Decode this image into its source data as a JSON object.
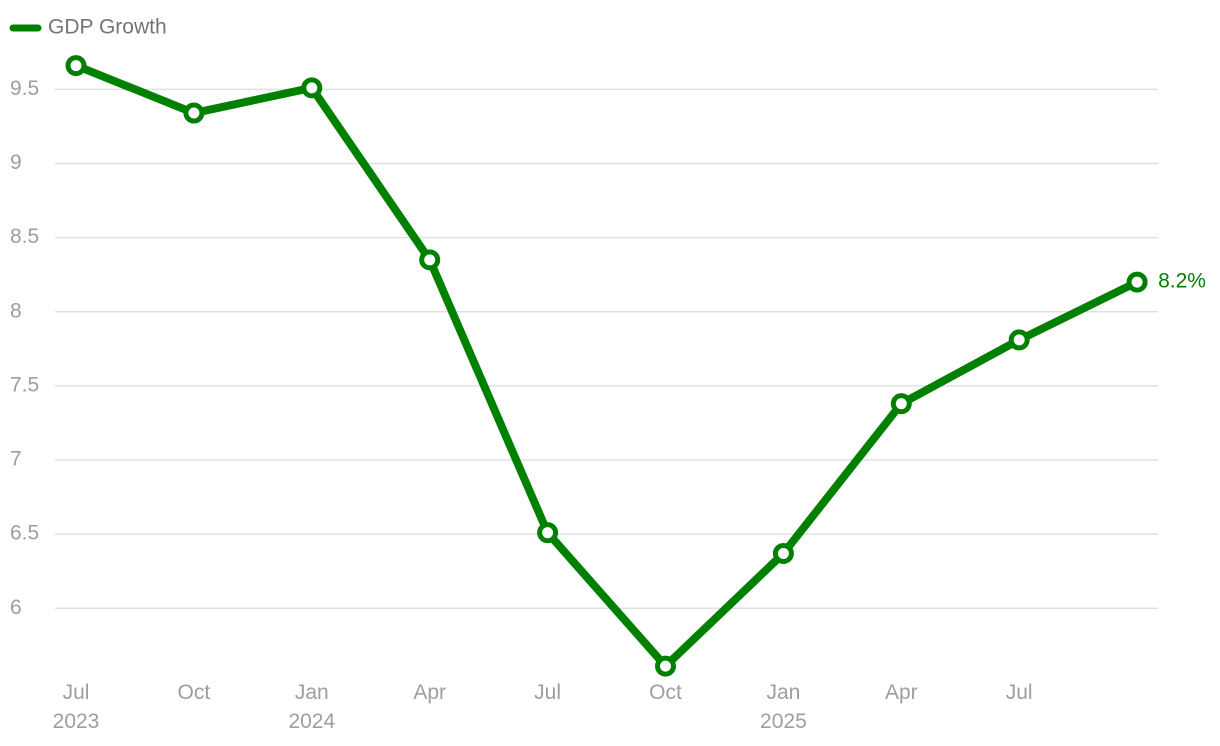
{
  "chart_data": {
    "type": "line",
    "categories": [
      "Jul\n2023",
      "Oct",
      "Jan\n2024",
      "Apr",
      "Jul",
      "Oct",
      "Jan\n2025",
      "Apr",
      "Jul",
      null
    ],
    "series": [
      {
        "name": "GDP Growth",
        "color": "#008000",
        "values": [
          9.66,
          9.34,
          9.51,
          8.35,
          6.51,
          5.61,
          6.37,
          7.38,
          7.81,
          8.2
        ],
        "value_labels": [
          null,
          null,
          null,
          null,
          null,
          null,
          null,
          null,
          null,
          "8.2%"
        ]
      }
    ],
    "ylim": [
      5.53,
      9.9
    ],
    "yticks": [
      6,
      6.5,
      7,
      7.5,
      8,
      8.5,
      9,
      9.5
    ],
    "grid": true,
    "legend": "top-left"
  }
}
